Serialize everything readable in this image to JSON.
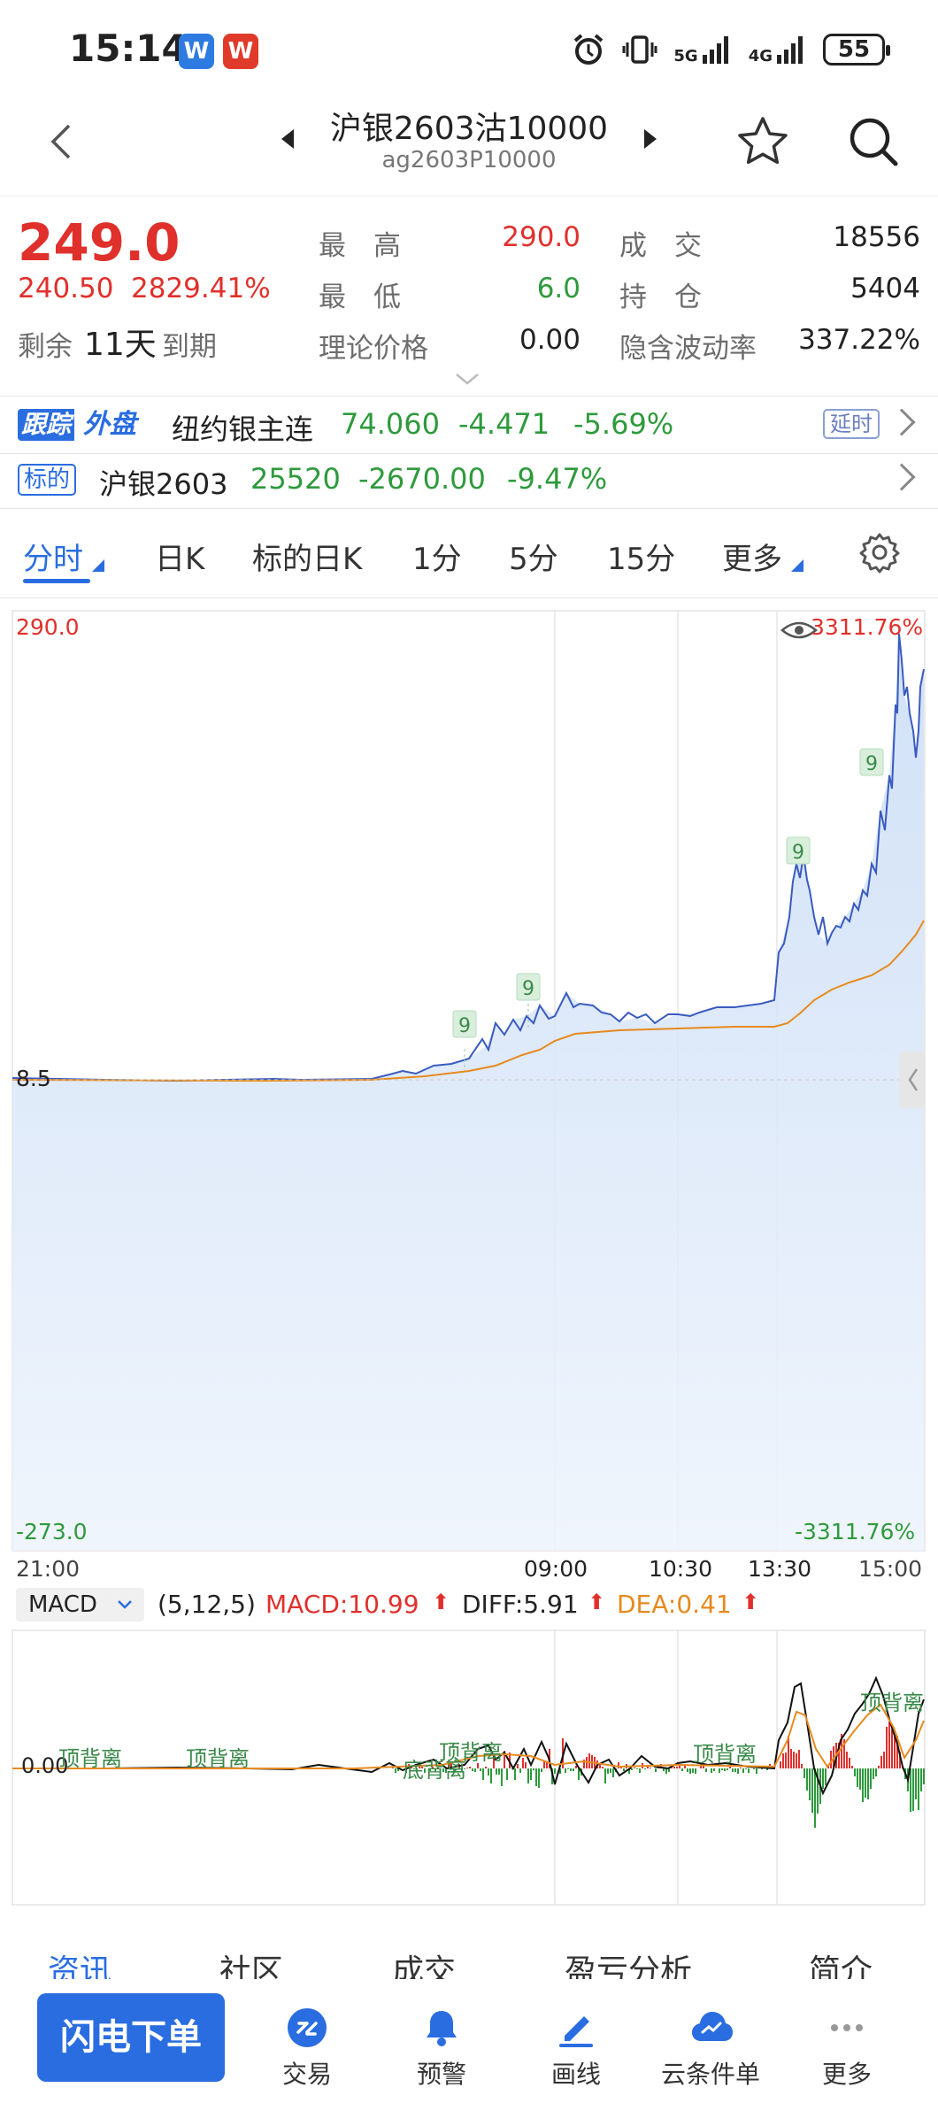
{
  "status_bar": {
    "time": "15:14",
    "badge1": "W",
    "badge2": "W",
    "net1": "5G",
    "net2": "4G",
    "battery": "55"
  },
  "header": {
    "title": "沪银2603沽10000",
    "subtitle": "ag2603P10000"
  },
  "quote": {
    "last_price": "249.0",
    "change": "240.50",
    "change_pct": "2829.41%",
    "remain_prefix": "剩余",
    "remain_days": "11天",
    "remain_suffix": "到期",
    "high_label": "最　高",
    "high_value": "290.0",
    "low_label": "最　低",
    "low_value": "6.0",
    "theo_label": "理论价格",
    "theo_value": "0.00",
    "volume_label": "成　交",
    "volume_value": "18556",
    "oi_label": "持　仓",
    "oi_value": "5404",
    "iv_label": "隐含波动率",
    "iv_value": "337.22%"
  },
  "track_row": {
    "badge_a": "跟踪",
    "badge_b": "外盘",
    "name": "纽约银主连",
    "price": "74.060",
    "change": "-4.471",
    "change_pct": "-5.69%",
    "delay": "延时"
  },
  "underlying_row": {
    "badge": "标的",
    "name": "沪银2603",
    "price": "25520",
    "change": "-2670.00",
    "change_pct": "-9.47%"
  },
  "period_tabs": [
    "分时",
    "日K",
    "标的日K",
    "1分",
    "5分",
    "15分",
    "更多"
  ],
  "chart": {
    "y_top": "290.0",
    "y_mid": "8.5",
    "y_bottom": "-273.0",
    "pct_top": "3311.76%",
    "pct_bottom": "-3311.76%",
    "x_labels": [
      "21:00",
      "09:00",
      "10:30",
      "13:30",
      "15:00"
    ],
    "signal_marker": "9",
    "macd_selector": "MACD",
    "macd_params": "(5,12,5)",
    "macd_value": "MACD:10.99",
    "diff_value": "DIFF:5.91",
    "dea_value": "DEA:0.41",
    "macd_zero": "0.00",
    "divergence_labels": [
      "顶背离",
      "顶背离",
      "底背离",
      "顶背离",
      "顶背离",
      "顶背离"
    ]
  },
  "chart_data": {
    "type": "line",
    "series": [
      {
        "name": "",
        "x": [
          "21:00",
          "23:00",
          "01:00",
          "09:00",
          "09:30",
          "10:00",
          "10:30",
          "11:00",
          "13:30",
          "13:45",
          "14:00",
          "14:15",
          "14:30",
          "14:45",
          "15:00"
        ],
        "values": [
          8.5,
          9,
          11,
          60,
          40,
          45,
          45,
          50,
          55,
          150,
          120,
          140,
          190,
          225,
          249
        ]
      },
      {
        "name": "",
        "x": [
          "21:00",
          "23:00",
          "01:00",
          "09:00",
          "09:30",
          "10:00",
          "10:30",
          "11:00",
          "13:30",
          "13:45",
          "14:00",
          "14:15",
          "14:30",
          "14:45",
          "15:00"
        ],
        "values": [
          8.5,
          8.5,
          9,
          22,
          35,
          40,
          42,
          44,
          45,
          62,
          72,
          82,
          90,
          100,
          114
        ]
      }
    ],
    "ylim": [
      -273.0,
      290.0
    ]
  },
  "info_tabs": [
    "资讯",
    "社区",
    "成交",
    "盈亏分析",
    "简介"
  ],
  "bottom_bar": {
    "flash_order": "闪电下单",
    "items": [
      "交易",
      "预警",
      "画线",
      "云条件单",
      "更多"
    ]
  }
}
